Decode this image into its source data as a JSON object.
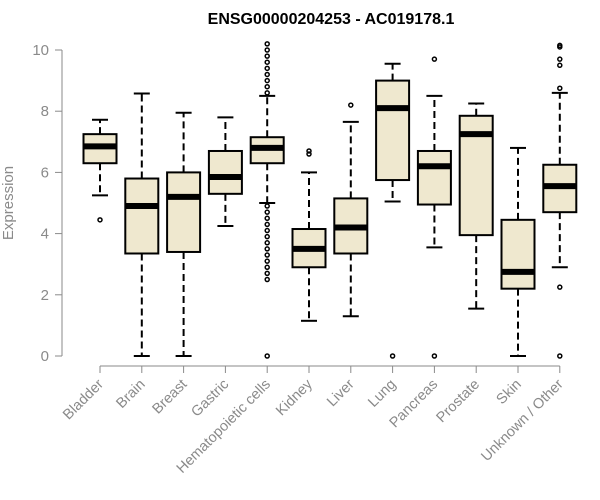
{
  "chart_data": {
    "type": "boxplot",
    "title": "ENSG00000204253 - AC019178.1",
    "xlabel": "",
    "ylabel": "Expression",
    "ylim": [
      0,
      10
    ],
    "yticks": [
      0,
      2,
      4,
      6,
      8,
      10
    ],
    "box_fill": "#efe8cf",
    "categories": [
      "Bladder",
      "Brain",
      "Breast",
      "Gastric",
      "Hematopoietic cells",
      "Kidney",
      "Liver",
      "Lung",
      "Pancreas",
      "Prostate",
      "Skin",
      "Unknown / Other"
    ],
    "boxes": [
      {
        "name": "Bladder",
        "whisker_low": 5.25,
        "q1": 6.3,
        "median": 6.85,
        "q3": 7.25,
        "whisker_high": 7.72,
        "outliers": [
          4.45
        ]
      },
      {
        "name": "Brain",
        "whisker_low": 0.0,
        "q1": 3.35,
        "median": 4.9,
        "q3": 5.8,
        "whisker_high": 8.58,
        "outliers": []
      },
      {
        "name": "Breast",
        "whisker_low": 0.0,
        "q1": 3.4,
        "median": 5.2,
        "q3": 6.0,
        "whisker_high": 7.95,
        "outliers": []
      },
      {
        "name": "Gastric",
        "whisker_low": 4.25,
        "q1": 5.3,
        "median": 5.85,
        "q3": 6.7,
        "whisker_high": 7.8,
        "outliers": []
      },
      {
        "name": "Hematopoietic cells",
        "whisker_low": 5.0,
        "q1": 6.3,
        "median": 6.8,
        "q3": 7.15,
        "whisker_high": 8.5,
        "outliers": [
          10.2,
          10.0,
          9.8,
          9.6,
          9.4,
          9.2,
          9.0,
          8.8,
          8.6,
          4.9,
          4.7,
          4.5,
          4.3,
          4.1,
          3.9,
          3.7,
          3.5,
          3.3,
          3.1,
          2.9,
          2.7,
          2.5,
          0.0
        ]
      },
      {
        "name": "Kidney",
        "whisker_low": 1.15,
        "q1": 2.9,
        "median": 3.5,
        "q3": 4.15,
        "whisker_high": 6.0,
        "outliers": [
          6.7,
          6.6
        ]
      },
      {
        "name": "Liver",
        "whisker_low": 1.3,
        "q1": 3.35,
        "median": 4.2,
        "q3": 5.15,
        "whisker_high": 7.65,
        "outliers": [
          8.2
        ]
      },
      {
        "name": "Lung",
        "whisker_low": 5.05,
        "q1": 5.75,
        "median": 8.1,
        "q3": 9.0,
        "whisker_high": 9.55,
        "outliers": [
          0.0
        ]
      },
      {
        "name": "Pancreas",
        "whisker_low": 3.55,
        "q1": 4.95,
        "median": 6.2,
        "q3": 6.7,
        "whisker_high": 8.5,
        "outliers": [
          9.7,
          0.0
        ]
      },
      {
        "name": "Prostate",
        "whisker_low": 1.55,
        "q1": 3.95,
        "median": 7.25,
        "q3": 7.85,
        "whisker_high": 8.25,
        "outliers": []
      },
      {
        "name": "Skin",
        "whisker_low": 0.0,
        "q1": 2.2,
        "median": 2.75,
        "q3": 4.45,
        "whisker_high": 6.8,
        "outliers": []
      },
      {
        "name": "Unknown / Other",
        "whisker_low": 2.9,
        "q1": 4.7,
        "median": 5.55,
        "q3": 6.25,
        "whisker_high": 8.6,
        "outliers": [
          10.15,
          10.1,
          9.7,
          9.5,
          8.75,
          2.25,
          0.0
        ]
      }
    ]
  }
}
